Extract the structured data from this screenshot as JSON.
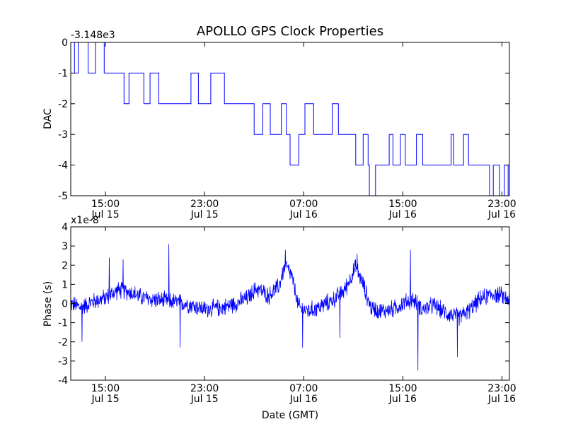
{
  "figure": {
    "title": "APOLLO GPS Clock Properties",
    "xlabel": "Date (GMT)",
    "time_ticks": [
      {
        "hour": 15,
        "label": "15:00",
        "date": "Jul 15"
      },
      {
        "hour": 23,
        "label": "23:00",
        "date": "Jul 15"
      },
      {
        "hour": 31,
        "label": "07:00",
        "date": "Jul 16"
      },
      {
        "hour": 39,
        "label": "15:00",
        "date": "Jul 16"
      },
      {
        "hour": 47,
        "label": "23:00",
        "date": "Jul 16"
      }
    ],
    "x_range_hours": [
      12.2,
      47.6
    ]
  },
  "chart_data": [
    {
      "type": "line",
      "name": "dac",
      "ylabel": "DAC",
      "offset_label": "-3.148e3",
      "ylim": [
        -5,
        0
      ],
      "yticks": [
        0,
        -1,
        -2,
        -3,
        -4,
        -5
      ],
      "ytick_labels": [
        "0",
        "-1",
        "-2",
        "-3",
        "-4",
        "-5"
      ],
      "color": "#0000ff",
      "levels": [
        {
          "t": 12.2,
          "v": 0
        },
        {
          "t": 12.5,
          "v": -1
        },
        {
          "t": 12.8,
          "v": 0
        },
        {
          "t": 13.6,
          "v": -1
        },
        {
          "t": 14.2,
          "v": 0
        },
        {
          "t": 14.9,
          "v": -1
        },
        {
          "t": 16.5,
          "v": -2
        },
        {
          "t": 16.9,
          "v": -1
        },
        {
          "t": 18.1,
          "v": -2
        },
        {
          "t": 18.6,
          "v": -1
        },
        {
          "t": 19.3,
          "v": -2
        },
        {
          "t": 21.9,
          "v": -1
        },
        {
          "t": 22.5,
          "v": -2
        },
        {
          "t": 23.5,
          "v": -1
        },
        {
          "t": 24.6,
          "v": -2
        },
        {
          "t": 26.3,
          "v": -2
        },
        {
          "t": 27.0,
          "v": -3
        },
        {
          "t": 27.7,
          "v": -2
        },
        {
          "t": 28.3,
          "v": -3
        },
        {
          "t": 29.2,
          "v": -2
        },
        {
          "t": 29.6,
          "v": -3
        },
        {
          "t": 29.9,
          "v": -4
        },
        {
          "t": 30.6,
          "v": -3
        },
        {
          "t": 31.1,
          "v": -2
        },
        {
          "t": 31.8,
          "v": -3
        },
        {
          "t": 33.3,
          "v": -2
        },
        {
          "t": 33.8,
          "v": -3
        },
        {
          "t": 34.8,
          "v": -3
        },
        {
          "t": 35.2,
          "v": -4
        },
        {
          "t": 35.8,
          "v": -3
        },
        {
          "t": 36.2,
          "v": -4
        },
        {
          "t": 36.3,
          "v": -5
        },
        {
          "t": 36.8,
          "v": -4
        },
        {
          "t": 37.9,
          "v": -3
        },
        {
          "t": 38.2,
          "v": -4
        },
        {
          "t": 38.8,
          "v": -3
        },
        {
          "t": 39.2,
          "v": -4
        },
        {
          "t": 40.1,
          "v": -3
        },
        {
          "t": 40.6,
          "v": -4
        },
        {
          "t": 42.9,
          "v": -3
        },
        {
          "t": 43.1,
          "v": -4
        },
        {
          "t": 43.9,
          "v": -3
        },
        {
          "t": 44.3,
          "v": -4
        },
        {
          "t": 46.0,
          "v": -5
        },
        {
          "t": 46.3,
          "v": -4
        },
        {
          "t": 46.8,
          "v": -5
        },
        {
          "t": 47.2,
          "v": -4
        },
        {
          "t": 47.5,
          "v": -5
        },
        {
          "t": 47.6,
          "v": -4
        }
      ]
    },
    {
      "type": "line",
      "name": "phase",
      "ylabel": "Phase (s)",
      "offset_label": "x1e-8",
      "ylim": [
        -4,
        4
      ],
      "yticks": [
        4,
        3,
        2,
        1,
        0,
        -1,
        -2,
        -3,
        -4
      ],
      "ytick_labels": [
        "4",
        "3",
        "2",
        "1",
        "0",
        "-1",
        "-2",
        "-3",
        "-4"
      ],
      "color": "#0000ff",
      "trend": [
        {
          "t": 12.2,
          "v": 0.0
        },
        {
          "t": 13.0,
          "v": -0.2
        },
        {
          "t": 14.0,
          "v": 0.1
        },
        {
          "t": 15.0,
          "v": 0.3
        },
        {
          "t": 16.0,
          "v": 0.7
        },
        {
          "t": 17.0,
          "v": 0.6
        },
        {
          "t": 18.0,
          "v": 0.3
        },
        {
          "t": 19.0,
          "v": 0.2
        },
        {
          "t": 20.5,
          "v": 0.1
        },
        {
          "t": 21.5,
          "v": 0.0
        },
        {
          "t": 23.0,
          "v": -0.3
        },
        {
          "t": 24.5,
          "v": -0.2
        },
        {
          "t": 25.5,
          "v": 0.0
        },
        {
          "t": 26.5,
          "v": 0.3
        },
        {
          "t": 27.2,
          "v": 0.8
        },
        {
          "t": 28.2,
          "v": 0.4
        },
        {
          "t": 29.0,
          "v": 0.9
        },
        {
          "t": 29.5,
          "v": 2.0
        },
        {
          "t": 30.0,
          "v": 1.5
        },
        {
          "t": 30.6,
          "v": -0.2
        },
        {
          "t": 31.4,
          "v": -0.4
        },
        {
          "t": 32.2,
          "v": -0.2
        },
        {
          "t": 33.4,
          "v": 0.2
        },
        {
          "t": 34.3,
          "v": 0.7
        },
        {
          "t": 35.2,
          "v": 1.9
        },
        {
          "t": 35.8,
          "v": 1.0
        },
        {
          "t": 36.4,
          "v": -0.2
        },
        {
          "t": 37.2,
          "v": -0.4
        },
        {
          "t": 38.2,
          "v": -0.3
        },
        {
          "t": 39.0,
          "v": 0.0
        },
        {
          "t": 39.8,
          "v": 0.2
        },
        {
          "t": 40.6,
          "v": -0.3
        },
        {
          "t": 41.5,
          "v": -0.1
        },
        {
          "t": 42.5,
          "v": -0.5
        },
        {
          "t": 43.5,
          "v": -0.7
        },
        {
          "t": 44.3,
          "v": -0.4
        },
        {
          "t": 45.2,
          "v": 0.2
        },
        {
          "t": 46.2,
          "v": 0.5
        },
        {
          "t": 47.0,
          "v": 0.4
        },
        {
          "t": 47.6,
          "v": 0.2
        }
      ],
      "spikes": [
        {
          "t": 15.3,
          "v": 2.4
        },
        {
          "t": 16.4,
          "v": 2.3
        },
        {
          "t": 20.1,
          "v": 3.1
        },
        {
          "t": 21.0,
          "v": -2.3
        },
        {
          "t": 13.1,
          "v": -2.0
        },
        {
          "t": 29.5,
          "v": 2.8
        },
        {
          "t": 30.9,
          "v": -2.3
        },
        {
          "t": 35.3,
          "v": 2.6
        },
        {
          "t": 39.6,
          "v": 2.8
        },
        {
          "t": 40.2,
          "v": -3.5
        },
        {
          "t": 43.4,
          "v": -2.8
        },
        {
          "t": 33.9,
          "v": -1.8
        }
      ],
      "noise_amplitude": 0.55
    }
  ]
}
